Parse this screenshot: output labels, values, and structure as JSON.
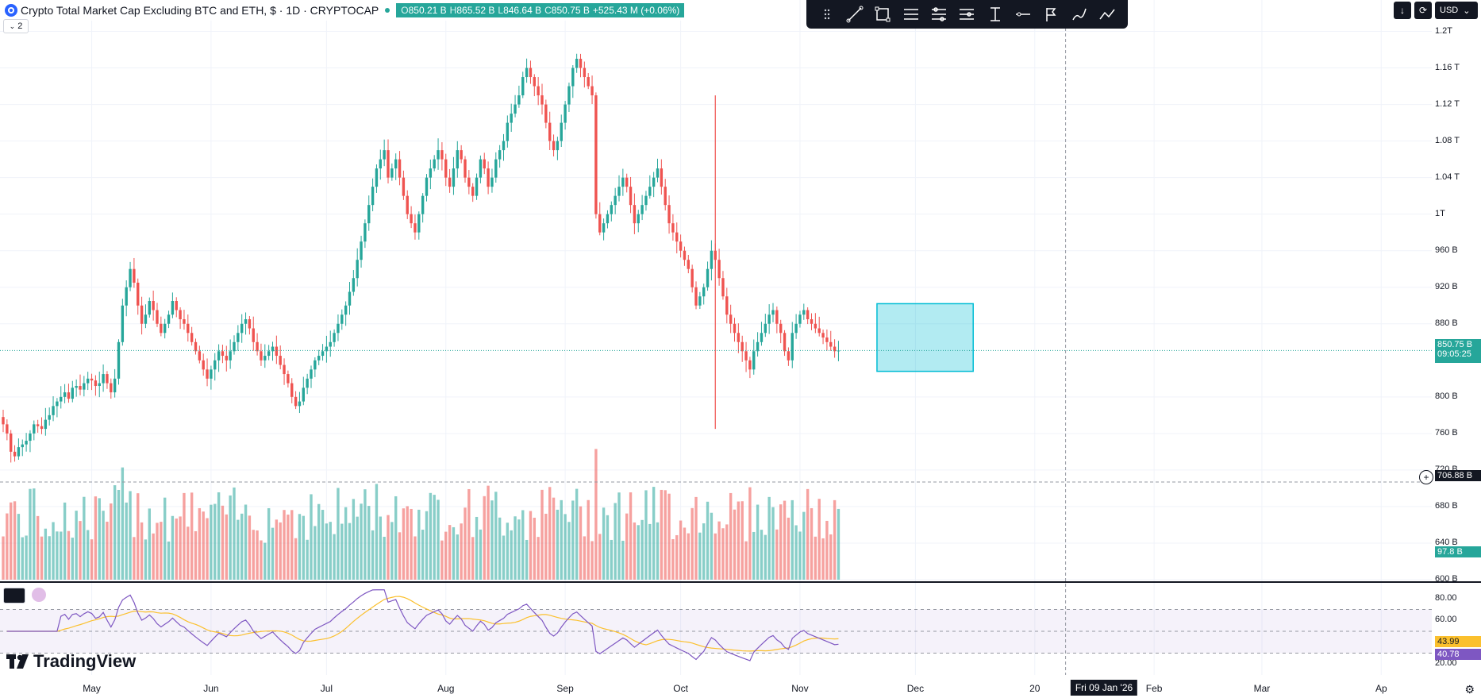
{
  "header": {
    "symbol_title": "Crypto Total Market Cap Excluding BTC and ETH, $ · 1D · CRYPTOCAP",
    "open": "850.21 B",
    "high": "865.52 B",
    "low": "846.64 B",
    "close": "850.75 B",
    "change": "+525.43 M (+0.06%)",
    "open_key": "O",
    "high_key": "H",
    "low_key": "L",
    "close_key": "C",
    "indicator_count": "2"
  },
  "top_right": {
    "currency": "USD"
  },
  "price_axis": {
    "ticks": [
      "1.2T",
      "1.16 T",
      "1.12 T",
      "1.08 T",
      "1.04 T",
      "1T",
      "960 B",
      "920 B",
      "880 B",
      "800 B",
      "760 B",
      "720 B",
      "680 B",
      "640 B",
      "600 B"
    ],
    "current_price": "850.75 B",
    "countdown": "09:05:25",
    "crosshair_price": "706.88 B",
    "volume_value": "97.8 B"
  },
  "rsi_axis": {
    "ticks": [
      "80.00",
      "60.00",
      "20.00"
    ],
    "rsi_ma": "43.99",
    "rsi_value": "40.78"
  },
  "time_axis": {
    "labels": [
      "May",
      "Jun",
      "Jul",
      "Aug",
      "Sep",
      "Oct",
      "Nov",
      "Dec",
      "20",
      "Feb",
      "Mar",
      "Ap"
    ],
    "crosshair_date": "Fri 09 Jan '26"
  },
  "branding": {
    "logo_text": "TradingView"
  },
  "colors": {
    "up": "#26a69a",
    "down": "#ef5350",
    "rsi": "#7e57c2",
    "rsi_ma": "#fbc02d",
    "box": "#00bcd4"
  },
  "chart_data": {
    "type": "candlestick",
    "title": "Crypto Total Market Cap Excluding BTC and ETH",
    "ylabel": "",
    "ylim_billion": [
      600,
      1210
    ],
    "x_start": "2025-04-08",
    "x_end_visible": "2026-04-03",
    "last_bar": "2025-12-14",
    "close_billion_daily": [
      770,
      760,
      740,
      735,
      745,
      748,
      752,
      760,
      770,
      768,
      765,
      775,
      780,
      790,
      795,
      800,
      805,
      798,
      810,
      812,
      808,
      815,
      820,
      818,
      812,
      815,
      825,
      815,
      805,
      820,
      860,
      900,
      920,
      940,
      925,
      900,
      880,
      890,
      905,
      895,
      880,
      870,
      880,
      890,
      905,
      895,
      885,
      880,
      870,
      860,
      850,
      840,
      830,
      820,
      830,
      840,
      850,
      845,
      840,
      850,
      860,
      870,
      880,
      885,
      875,
      860,
      850,
      840,
      845,
      850,
      855,
      845,
      835,
      825,
      815,
      800,
      790,
      795,
      810,
      820,
      830,
      840,
      845,
      850,
      855,
      860,
      870,
      880,
      890,
      900,
      915,
      930,
      950,
      970,
      990,
      1010,
      1030,
      1050,
      1060,
      1070,
      1040,
      1050,
      1060,
      1040,
      1020,
      1000,
      990,
      980,
      1000,
      1020,
      1040,
      1050,
      1060,
      1070,
      1060,
      1040,
      1030,
      1050,
      1070,
      1060,
      1040,
      1030,
      1020,
      1040,
      1060,
      1050,
      1030,
      1040,
      1060,
      1070,
      1080,
      1100,
      1110,
      1120,
      1130,
      1150,
      1160,
      1150,
      1140,
      1130,
      1120,
      1100,
      1080,
      1070,
      1080,
      1100,
      1120,
      1140,
      1160,
      1170,
      1160,
      1150,
      1140,
      1130,
      1000,
      980,
      990,
      1000,
      1010,
      1020,
      1030,
      1040,
      1030,
      1010,
      990,
      1000,
      1010,
      1020,
      1030,
      1040,
      1050,
      1030,
      1010,
      990,
      980,
      970,
      960,
      950,
      940,
      920,
      900,
      910,
      920,
      940,
      960,
      950,
      930,
      910,
      890,
      880,
      870,
      860,
      850,
      840,
      830,
      850,
      860,
      870,
      880,
      890,
      895,
      880,
      870,
      850,
      840,
      870,
      880,
      890,
      895,
      885,
      880,
      875,
      870,
      865,
      860,
      855,
      850,
      850.75
    ],
    "volume_billion_daily_approx": "40-120 (bars)",
    "annotations": [
      {
        "type": "rectangle",
        "label": "consolidation box",
        "from": "2025-11-21",
        "to": "2025-12-16",
        "price_top_billion": 902,
        "price_bottom_billion": 828
      }
    ],
    "indicators": [
      {
        "name": "Volume",
        "last": "97.8 B"
      },
      {
        "name": "RSI",
        "value": 40.78,
        "ma": 43.99,
        "bands": [
          70,
          30
        ]
      }
    ],
    "grid": true
  }
}
